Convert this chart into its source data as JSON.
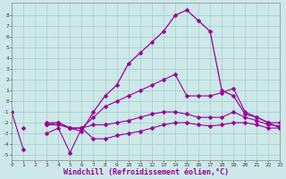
{
  "x": [
    0,
    1,
    2,
    3,
    4,
    5,
    6,
    7,
    8,
    9,
    10,
    11,
    12,
    13,
    14,
    15,
    16,
    17,
    18,
    19,
    20,
    21,
    22,
    23
  ],
  "series": [
    {
      "name": "line_bottom",
      "y": [
        -1.0,
        -4.5,
        null,
        -3.0,
        -2.5,
        -4.8,
        -2.5,
        -3.5,
        -3.5,
        -3.2,
        -3.0,
        -2.8,
        -2.5,
        -2.2,
        -2.0,
        -2.0,
        -2.2,
        -2.3,
        -2.2,
        -2.0,
        -2.0,
        -2.2,
        -2.5,
        -2.5
      ],
      "color": "#990099",
      "linewidth": 0.8,
      "markersize": 2.5
    },
    {
      "name": "line_mid_low",
      "y": [
        null,
        null,
        null,
        -2.2,
        -2.2,
        -2.5,
        -2.5,
        -2.2,
        -2.2,
        -2.0,
        -1.8,
        -1.5,
        -1.2,
        -1.0,
        -1.0,
        -1.2,
        -1.5,
        -1.5,
        -1.5,
        -1.0,
        -1.5,
        -1.8,
        -2.2,
        -2.3
      ],
      "color": "#990099",
      "linewidth": 0.8,
      "markersize": 2.5
    },
    {
      "name": "line_main",
      "y": [
        null,
        -2.5,
        null,
        -2.2,
        -2.0,
        -2.5,
        -2.8,
        -1.0,
        0.5,
        1.5,
        3.5,
        4.5,
        5.5,
        6.5,
        8.0,
        8.5,
        7.5,
        6.5,
        1.0,
        0.5,
        -1.2,
        -1.5,
        -2.0,
        -2.5
      ],
      "color": "#990099",
      "linewidth": 0.9,
      "markersize": 2.5
    },
    {
      "name": "line_mid_high",
      "y": [
        -1.0,
        null,
        null,
        -2.0,
        -2.0,
        -2.5,
        -2.5,
        -1.5,
        -0.5,
        0.0,
        0.5,
        1.0,
        1.5,
        2.0,
        2.5,
        0.5,
        0.5,
        0.5,
        0.8,
        1.2,
        -1.0,
        -1.5,
        -2.0,
        -2.0
      ],
      "color": "#990099",
      "linewidth": 0.8,
      "markersize": 2.5
    }
  ],
  "xlim": [
    0,
    23
  ],
  "ylim": [
    -5.5,
    9.2
  ],
  "yticks": [
    -5,
    -4,
    -3,
    -2,
    -1,
    0,
    1,
    2,
    3,
    4,
    5,
    6,
    7,
    8
  ],
  "xticks": [
    0,
    1,
    2,
    3,
    4,
    5,
    6,
    7,
    8,
    9,
    10,
    11,
    12,
    13,
    14,
    15,
    16,
    17,
    18,
    19,
    20,
    21,
    22,
    23
  ],
  "xlabel": "Windchill (Refroidissement éolien,°C)",
  "background_color": "#cce8e8",
  "grid_color": "#aacccc",
  "marker_color": "#990099",
  "tick_fontsize": 4.5,
  "label_fontsize": 6.0,
  "label_color": "#990099"
}
